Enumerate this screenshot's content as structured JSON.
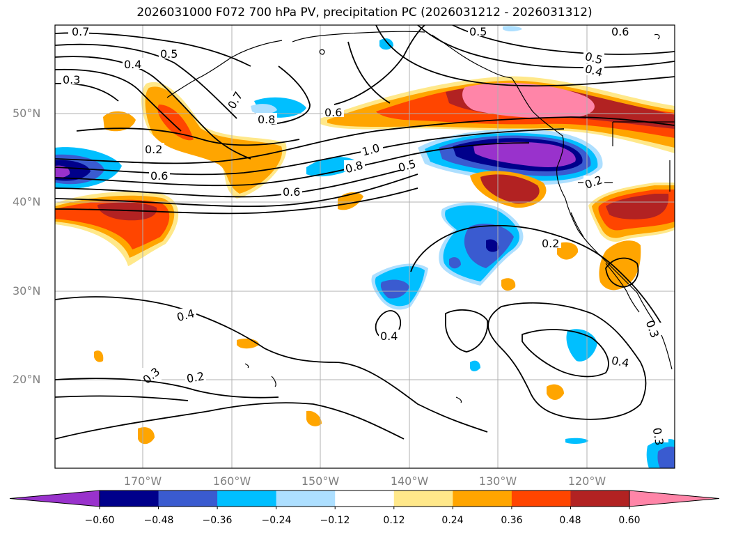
{
  "title": "2026031000 F072 700 hPa PV, precipitation PC (2026031212 - 2026031312)",
  "lat_labels": [
    "50°N",
    "40°N",
    "30°N",
    "20°N"
  ],
  "lon_labels": [
    "170°W",
    "160°W",
    "150°W",
    "140°W",
    "130°W",
    "120°W"
  ],
  "colorbar": {
    "tick_labels": [
      "−0.60",
      "−0.48",
      "−0.36",
      "−0.24",
      "−0.12",
      "0.12",
      "0.24",
      "0.36",
      "0.48",
      "0.60"
    ],
    "colors": [
      "#9932CC",
      "#00008B",
      "#3A5BD0",
      "#00BFFF",
      "#ADDFFF",
      "#FFFFFF",
      "#FFE88A",
      "#FFA500",
      "#FF4500",
      "#B22222",
      "#FF85A8"
    ]
  },
  "contour_labels": [
    "0.7",
    "0.5",
    "0.4",
    "0.3",
    "0.2",
    "0.6",
    "0.8",
    "0.7",
    "0.6",
    "1.0",
    "0.8",
    "0.5",
    "0.6",
    "0.5",
    "0.6",
    "0.5",
    "0.4",
    "0.2",
    "0.2",
    "0.4",
    "0.4",
    "0.3",
    "0.2",
    "0.4",
    "0.3",
    "0.3"
  ]
}
